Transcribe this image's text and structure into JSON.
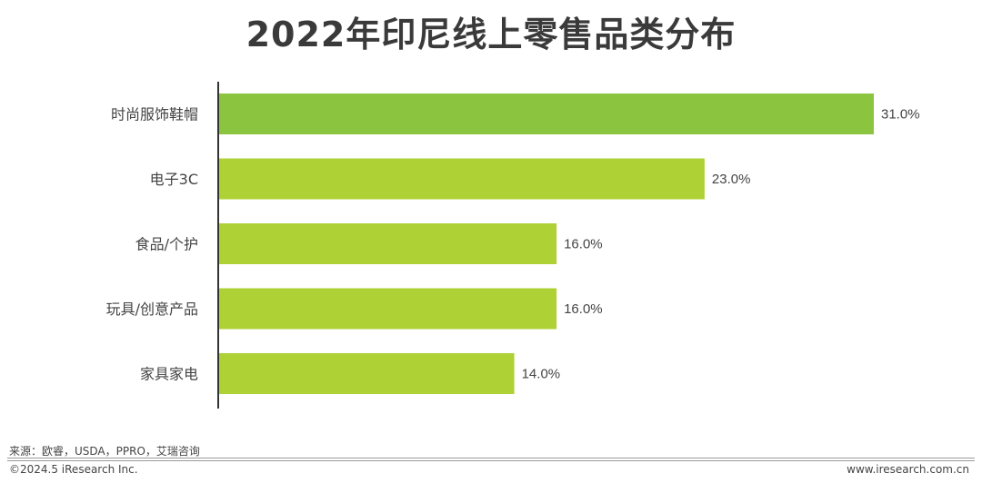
{
  "chart_data": {
    "type": "bar",
    "orientation": "horizontal",
    "title": "2022年印尼线上零售品类分布",
    "categories": [
      "时尚服饰鞋帽",
      "电子3C",
      "食品/个护",
      "玩具/创意产品",
      "家具家电"
    ],
    "values": [
      31.0,
      23.0,
      16.0,
      16.0,
      14.0
    ],
    "value_labels": [
      "31.0%",
      "23.0%",
      "16.0%",
      "16.0%",
      "14.0%"
    ],
    "value_unit": "%",
    "xlim": [
      0,
      31
    ],
    "grid": false,
    "legend": "none",
    "colors": {
      "highlight": "#8bc43f",
      "bar": "#aed135",
      "axis": "#333333"
    }
  },
  "footer": {
    "source": "来源：欧睿，USDA，PPRO，艾瑞咨询",
    "copyright": "©2024.5 iResearch Inc.",
    "website": "www.iresearch.com.cn"
  }
}
